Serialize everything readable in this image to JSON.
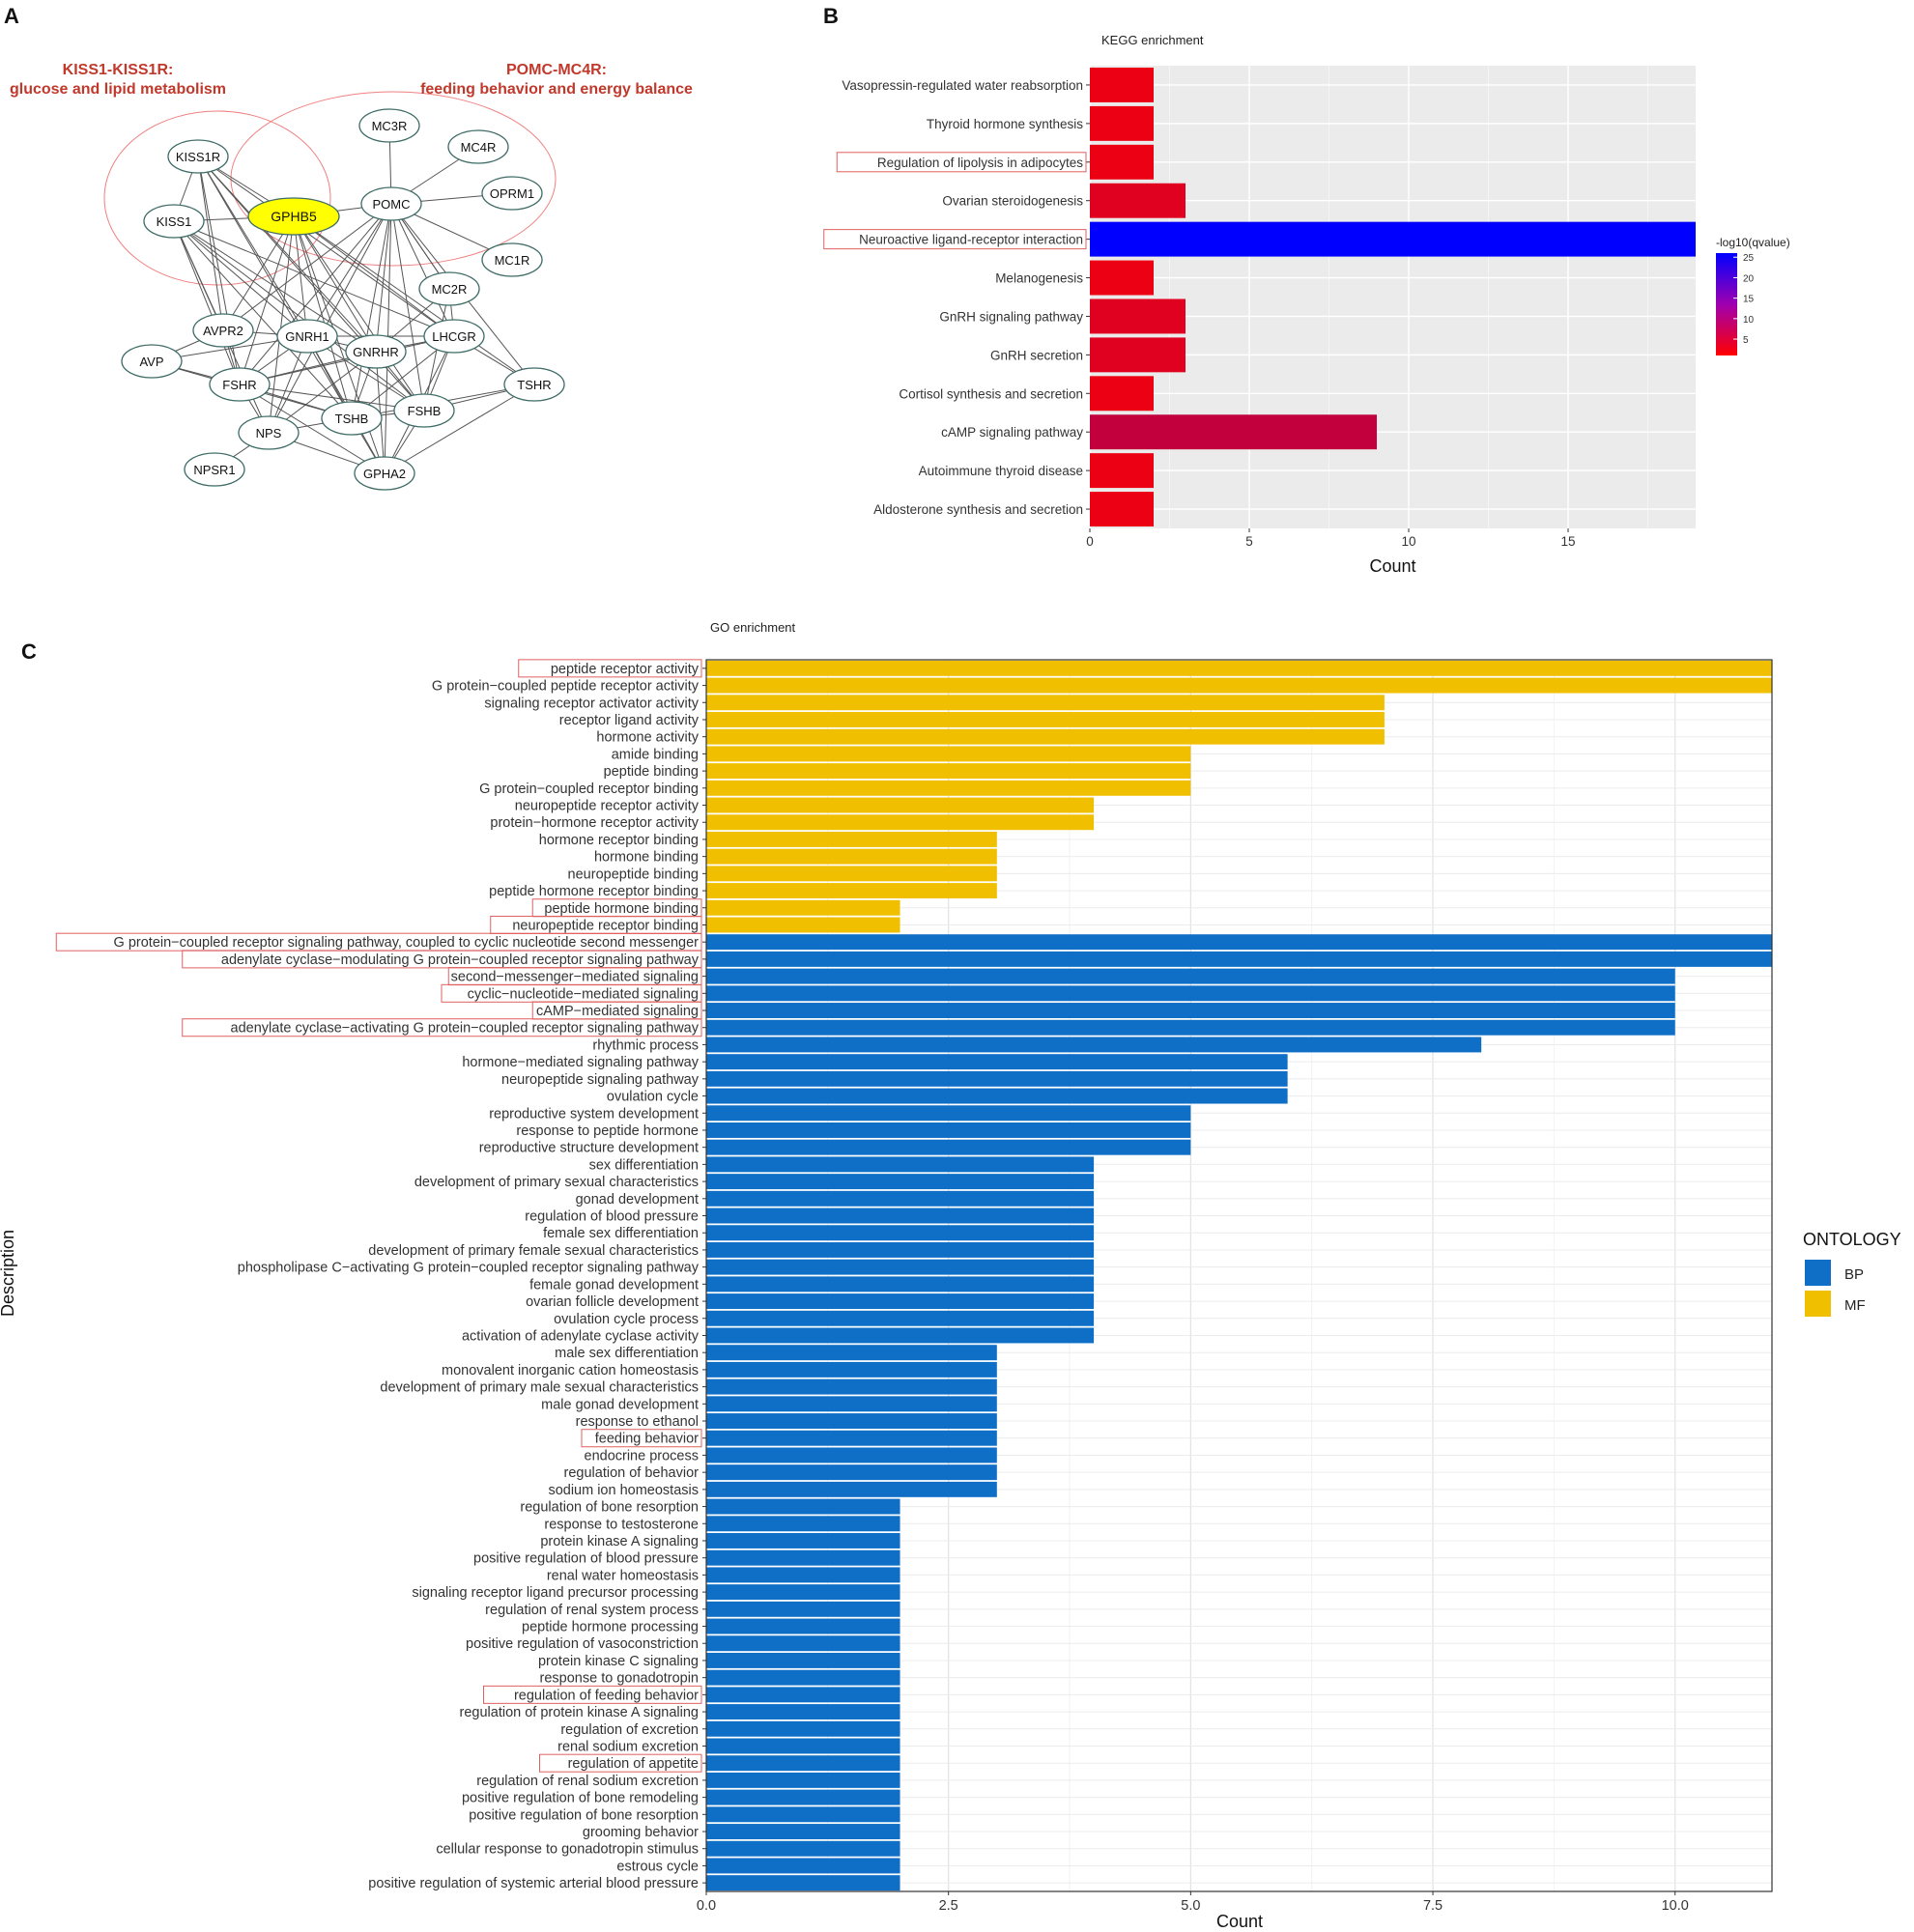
{
  "panel_letters": {
    "a": "A",
    "b": "B",
    "c": "C"
  },
  "network": {
    "group1_title_line1": "KISS1-KISS1R:",
    "group1_title_line2": "glucose and lipid metabolism",
    "group2_title_line1": "POMC-MC4R:",
    "group2_title_line2": "feeding behavior and energy balance",
    "colors": {
      "title": "#c0392b",
      "node_stroke": "#3d6b66",
      "hub_fill": "#ffff00",
      "group_ring": "#f08080"
    },
    "nodes": [
      {
        "id": "MC3R",
        "label": "MC3R"
      },
      {
        "id": "MC4R",
        "label": "MC4R"
      },
      {
        "id": "KISS1R",
        "label": "KISS1R"
      },
      {
        "id": "OPRM1",
        "label": "OPRM1"
      },
      {
        "id": "POMC",
        "label": "POMC"
      },
      {
        "id": "KISS1",
        "label": "KISS1"
      },
      {
        "id": "GPHB5",
        "label": "GPHB5",
        "hub": true
      },
      {
        "id": "MC1R",
        "label": "MC1R"
      },
      {
        "id": "MC2R",
        "label": "MC2R"
      },
      {
        "id": "AVPR2",
        "label": "AVPR2"
      },
      {
        "id": "GNRH1",
        "label": "GNRH1"
      },
      {
        "id": "LHCGR",
        "label": "LHCGR"
      },
      {
        "id": "AVP",
        "label": "AVP"
      },
      {
        "id": "GNRHR",
        "label": "GNRHR"
      },
      {
        "id": "FSHR",
        "label": "FSHR"
      },
      {
        "id": "TSHR",
        "label": "TSHR"
      },
      {
        "id": "FSHB",
        "label": "FSHB"
      },
      {
        "id": "TSHB",
        "label": "TSHB"
      },
      {
        "id": "NPS",
        "label": "NPS"
      },
      {
        "id": "NPSR1",
        "label": "NPSR1"
      },
      {
        "id": "GPHA2",
        "label": "GPHA2"
      }
    ],
    "edges": [
      [
        "MC3R",
        "POMC"
      ],
      [
        "MC4R",
        "POMC"
      ],
      [
        "OPRM1",
        "POMC"
      ],
      [
        "MC1R",
        "POMC"
      ],
      [
        "MC2R",
        "POMC"
      ],
      [
        "KISS1R",
        "KISS1"
      ],
      [
        "KISS1R",
        "GPHB5"
      ],
      [
        "KISS1",
        "GPHB5"
      ],
      [
        "GPHB5",
        "POMC"
      ],
      [
        "KISS1R",
        "GNRH1"
      ],
      [
        "KISS1R",
        "GNRHR"
      ],
      [
        "KISS1R",
        "LHCGR"
      ],
      [
        "KISS1R",
        "FSHR"
      ],
      [
        "KISS1R",
        "FSHB"
      ],
      [
        "KISS1R",
        "TSHB"
      ],
      [
        "KISS1R",
        "AVPR2"
      ],
      [
        "KISS1",
        "GNRH1"
      ],
      [
        "KISS1",
        "GNRHR"
      ],
      [
        "KISS1",
        "LHCGR"
      ],
      [
        "KISS1",
        "FSHR"
      ],
      [
        "KISS1",
        "FSHB"
      ],
      [
        "KISS1",
        "TSHB"
      ],
      [
        "KISS1",
        "AVPR2"
      ],
      [
        "KISS1",
        "NPS"
      ],
      [
        "GPHB5",
        "GNRH1"
      ],
      [
        "GPHB5",
        "GNRHR"
      ],
      [
        "GPHB5",
        "LHCGR"
      ],
      [
        "GPHB5",
        "FSHR"
      ],
      [
        "GPHB5",
        "FSHB"
      ],
      [
        "GPHB5",
        "TSHB"
      ],
      [
        "GPHB5",
        "TSHR"
      ],
      [
        "GPHB5",
        "GPHA2"
      ],
      [
        "GPHB5",
        "AVPR2"
      ],
      [
        "GPHB5",
        "NPS"
      ],
      [
        "POMC",
        "GNRH1"
      ],
      [
        "POMC",
        "GNRHR"
      ],
      [
        "POMC",
        "LHCGR"
      ],
      [
        "POMC",
        "FSHR"
      ],
      [
        "POMC",
        "FSHB"
      ],
      [
        "POMC",
        "TSHB"
      ],
      [
        "POMC",
        "TSHR"
      ],
      [
        "POMC",
        "GPHA2"
      ],
      [
        "POMC",
        "AVPR2"
      ],
      [
        "POMC",
        "NPS"
      ],
      [
        "POMC",
        "MC2R"
      ],
      [
        "MC2R",
        "LHCGR"
      ],
      [
        "MC2R",
        "GNRHR"
      ],
      [
        "MC2R",
        "FSHB"
      ],
      [
        "AVPR2",
        "AVP"
      ],
      [
        "AVPR2",
        "GNRH1"
      ],
      [
        "AVPR2",
        "FSHR"
      ],
      [
        "AVP",
        "FSHR"
      ],
      [
        "AVP",
        "GNRH1"
      ],
      [
        "AVP",
        "TSHB"
      ],
      [
        "GNRH1",
        "GNRHR"
      ],
      [
        "GNRH1",
        "LHCGR"
      ],
      [
        "GNRH1",
        "FSHR"
      ],
      [
        "GNRH1",
        "FSHB"
      ],
      [
        "GNRH1",
        "TSHB"
      ],
      [
        "GNRH1",
        "NPS"
      ],
      [
        "GNRH1",
        "GPHA2"
      ],
      [
        "GNRHR",
        "LHCGR"
      ],
      [
        "GNRHR",
        "FSHR"
      ],
      [
        "GNRHR",
        "FSHB"
      ],
      [
        "GNRHR",
        "TSHB"
      ],
      [
        "GNRHR",
        "GPHA2"
      ],
      [
        "GNRHR",
        "NPS"
      ],
      [
        "LHCGR",
        "FSHR"
      ],
      [
        "LHCGR",
        "FSHB"
      ],
      [
        "LHCGR",
        "TSHB"
      ],
      [
        "LHCGR",
        "TSHR"
      ],
      [
        "LHCGR",
        "GPHA2"
      ],
      [
        "FSHR",
        "FSHB"
      ],
      [
        "FSHR",
        "TSHB"
      ],
      [
        "FSHR",
        "NPS"
      ],
      [
        "FSHR",
        "GPHA2"
      ],
      [
        "FSHB",
        "TSHB"
      ],
      [
        "FSHB",
        "TSHR"
      ],
      [
        "FSHB",
        "GPHA2"
      ],
      [
        "TSHB",
        "TSHR"
      ],
      [
        "TSHB",
        "GPHA2"
      ],
      [
        "TSHB",
        "NPS"
      ],
      [
        "NPS",
        "NPSR1"
      ],
      [
        "NPS",
        "GPHA2"
      ],
      [
        "GPHA2",
        "TSHR"
      ]
    ]
  },
  "chart_data": [
    {
      "id": "kegg",
      "type": "bar",
      "orientation": "horizontal",
      "title": "KEGG enrichment",
      "xlabel": "Count",
      "ylabel": "",
      "xlim": [
        0,
        19
      ],
      "xticks": [
        0,
        5,
        10,
        15
      ],
      "legend": {
        "title": "-log10(qvalue)",
        "ticks": [
          25,
          20,
          15,
          10,
          5
        ],
        "range": [
          1,
          26
        ],
        "low_color": "#ff0000",
        "high_color": "#0000ff",
        "placement": "right"
      },
      "categories": [
        "Vasopressin-regulated water reabsorption",
        "Thyroid hormone synthesis",
        "Regulation of lipolysis in adipocytes",
        "Ovarian steroidogenesis",
        "Neuroactive ligand-receptor interaction",
        "Melanogenesis",
        "GnRH signaling pathway",
        "GnRH secretion",
        "Cortisol synthesis and secretion",
        "cAMP signaling pathway",
        "Autoimmune thyroid disease",
        "Aldosterone synthesis and secretion"
      ],
      "values": [
        2,
        2,
        2,
        3,
        19,
        2,
        3,
        3,
        2,
        9,
        2,
        2
      ],
      "neg_log10_qvalue": [
        3,
        3,
        3,
        4,
        26,
        3,
        4,
        4,
        3,
        7,
        3,
        3
      ],
      "highlighted": [
        "Regulation of lipolysis in adipocytes",
        "Neuroactive ligand-receptor interaction"
      ]
    },
    {
      "id": "go",
      "type": "bar",
      "orientation": "horizontal",
      "title": "GO enrichment",
      "xlabel": "Count",
      "ylabel": "Description",
      "xlim": [
        0,
        11
      ],
      "xticks": [
        0,
        2.5,
        5,
        7.5,
        10
      ],
      "xtick_labels": [
        "0.0",
        "2.5",
        "5.0",
        "7.5",
        "10.0"
      ],
      "legend": {
        "title": "ONTOLOGY",
        "entries": [
          {
            "name": "BP",
            "color": "#0f6fc6"
          },
          {
            "name": "MF",
            "color": "#f0c000"
          }
        ],
        "placement": "right"
      },
      "categories": [
        "peptide receptor activity",
        "G protein−coupled peptide receptor activity",
        "signaling receptor activator activity",
        "receptor ligand activity",
        "hormone activity",
        "amide binding",
        "peptide binding",
        "G protein−coupled receptor binding",
        "neuropeptide receptor activity",
        "protein−hormone receptor activity",
        "hormone receptor binding",
        "hormone binding",
        "neuropeptide binding",
        "peptide hormone receptor binding",
        "peptide hormone binding",
        "neuropeptide receptor binding",
        "G protein−coupled receptor signaling pathway, coupled to cyclic nucleotide second messenger",
        "adenylate cyclase−modulating G protein−coupled receptor signaling pathway",
        "second−messenger−mediated signaling",
        "cyclic−nucleotide−mediated signaling",
        "cAMP−mediated signaling",
        "adenylate cyclase−activating G protein−coupled receptor signaling pathway",
        "rhythmic process",
        "hormone−mediated signaling pathway",
        "neuropeptide signaling pathway",
        "ovulation cycle",
        "reproductive system development",
        "response to peptide hormone",
        "reproductive structure development",
        "sex differentiation",
        "development of primary sexual characteristics",
        "gonad development",
        "regulation of blood pressure",
        "female sex differentiation",
        "development of primary female sexual characteristics",
        "phospholipase C−activating G protein−coupled receptor signaling pathway",
        "female gonad development",
        "ovarian follicle development",
        "ovulation cycle process",
        "activation of adenylate cyclase activity",
        "male sex differentiation",
        "monovalent inorganic cation homeostasis",
        "development of primary male sexual characteristics",
        "male gonad development",
        "response to ethanol",
        "feeding behavior",
        "endocrine process",
        "regulation of behavior",
        "sodium ion homeostasis",
        "regulation of bone resorption",
        "response to testosterone",
        "protein kinase A signaling",
        "positive regulation of blood pressure",
        "renal water homeostasis",
        "signaling receptor ligand precursor processing",
        "regulation of renal system process",
        "peptide hormone processing",
        "positive regulation of vasoconstriction",
        "protein kinase C signaling",
        "response to gonadotropin",
        "regulation of feeding behavior",
        "regulation of protein kinase A signaling",
        "regulation of excretion",
        "renal sodium excretion",
        "regulation of appetite",
        "regulation of renal sodium excretion",
        "positive regulation of bone remodeling",
        "positive regulation of bone resorption",
        "grooming behavior",
        "cellular response to gonadotropin stimulus",
        "estrous cycle",
        "positive regulation of systemic arterial blood pressure"
      ],
      "values": [
        11,
        11,
        7,
        7,
        7,
        5,
        5,
        5,
        4,
        4,
        3,
        3,
        3,
        3,
        2,
        2,
        11,
        11,
        10,
        10,
        10,
        10,
        8,
        6,
        6,
        6,
        5,
        5,
        5,
        4,
        4,
        4,
        4,
        4,
        4,
        4,
        4,
        4,
        4,
        4,
        3,
        3,
        3,
        3,
        3,
        3,
        3,
        3,
        3,
        2,
        2,
        2,
        2,
        2,
        2,
        2,
        2,
        2,
        2,
        2,
        2,
        2,
        2,
        2,
        2,
        2,
        2,
        2,
        2,
        2,
        2,
        2
      ],
      "ontology": [
        "MF",
        "MF",
        "MF",
        "MF",
        "MF",
        "MF",
        "MF",
        "MF",
        "MF",
        "MF",
        "MF",
        "MF",
        "MF",
        "MF",
        "MF",
        "MF",
        "BP",
        "BP",
        "BP",
        "BP",
        "BP",
        "BP",
        "BP",
        "BP",
        "BP",
        "BP",
        "BP",
        "BP",
        "BP",
        "BP",
        "BP",
        "BP",
        "BP",
        "BP",
        "BP",
        "BP",
        "BP",
        "BP",
        "BP",
        "BP",
        "BP",
        "BP",
        "BP",
        "BP",
        "BP",
        "BP",
        "BP",
        "BP",
        "BP",
        "BP",
        "BP",
        "BP",
        "BP",
        "BP",
        "BP",
        "BP",
        "BP",
        "BP",
        "BP",
        "BP",
        "BP",
        "BP",
        "BP",
        "BP",
        "BP",
        "BP",
        "BP",
        "BP",
        "BP",
        "BP",
        "BP",
        "BP"
      ],
      "highlighted": [
        "peptide receptor activity",
        "peptide hormone binding",
        "neuropeptide receptor binding",
        "G protein−coupled receptor signaling pathway, coupled to cyclic nucleotide second messenger",
        "adenylate cyclase−modulating G protein−coupled receptor signaling pathway",
        "second−messenger−mediated signaling",
        "cyclic−nucleotide−mediated signaling",
        "cAMP−mediated signaling",
        "adenylate cyclase−activating G protein−coupled receptor signaling pathway",
        "feeding behavior",
        "regulation of feeding behavior",
        "regulation of appetite"
      ]
    }
  ]
}
